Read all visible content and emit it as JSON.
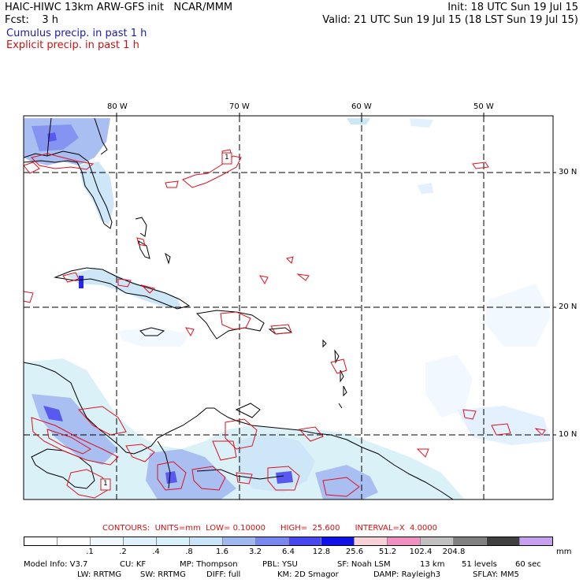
{
  "header": {
    "title": "HAIC-HIWC 13km ARW-GFS init   NCAR/MMM",
    "fcst": "Fcst:    3 h",
    "init": "Init: 18 UTC Sun 19 Jul 15",
    "valid": "Valid: 21 UTC Sun 19 Jul 15 (18 LST Sun 19 Jul 15)",
    "cumulus": "Cumulus precip. in past 1 h",
    "explicit": "Explicit precip. in past 1 h"
  },
  "map": {
    "lon_labels": [
      "80 W",
      "70 W",
      "60 W",
      "50 W"
    ],
    "lat_labels": [
      "30 N",
      "20 N",
      "10 N"
    ],
    "box_labels": [
      "1",
      "1"
    ],
    "coast_color": "#000000",
    "grid_color": "#000000",
    "contour_color": "#e0101e"
  },
  "contours": {
    "text": "CONTOURS:  UNITS=mm  LOW= 0.10000      HIGH=  25.600      INTERVAL=X  4.0000"
  },
  "colorbar": {
    "colors": [
      "#ffffff",
      "#ffffff",
      "#f0f8ff",
      "#e0f0ff",
      "#d8f0f8",
      "#c8e4f8",
      "#a0b8f0",
      "#7888f0",
      "#4848f0",
      "#1010e8",
      "#f8d0d8",
      "#f090c0",
      "#c0c0c0",
      "#808080",
      "#404040",
      "#c8a0f0"
    ],
    "labels": [
      ".1",
      ".2",
      ".4",
      ".8",
      "1.6",
      "3.2",
      "6.4",
      "12.8",
      "25.6",
      "51.2",
      "102.4",
      "204.8"
    ],
    "unit": "mm"
  },
  "model_info": {
    "line1": [
      "Model Info: V3.7",
      "CU: KF",
      "MP: Thompson",
      "PBL: YSU",
      "SF: Noah LSM",
      "13 km",
      "51 levels",
      "60 sec"
    ],
    "line2": [
      "LW: RRTMG",
      "SW: RRTMG",
      "DIFF: full",
      "KM: 2D Smagor",
      "DAMP: Rayleigh3",
      "SFLAY: MM5"
    ]
  }
}
